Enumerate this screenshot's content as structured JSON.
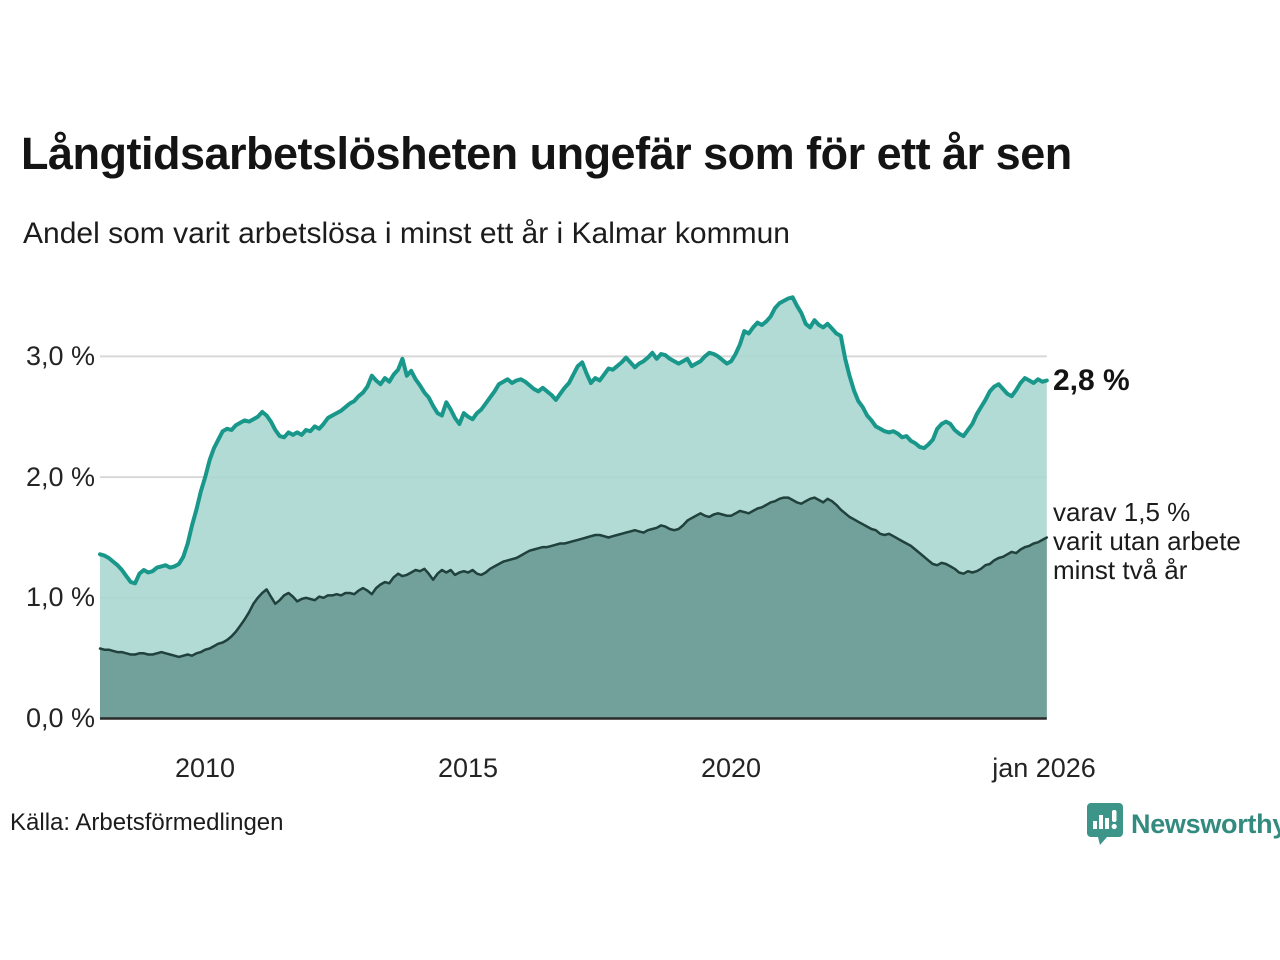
{
  "header": {
    "title": "Långtidsarbetslösheten ungefär som för ett år sen",
    "subtitle": "Andel som varit arbetslösa i minst ett år i Kalmar kommun"
  },
  "annotations": {
    "end_value_label": "2,8 %",
    "secondary_lines": [
      "varav 1,5 %",
      "varit utan arbete",
      "minst två år"
    ]
  },
  "footer": {
    "source": "Källa: Arbetsförmedlingen",
    "brand": "Newsworthy"
  },
  "colors": {
    "line_primary": "#18978a",
    "fill_primary": "#aad7d0",
    "line_secondary": "#20413c",
    "fill_secondary": "#6f9d98",
    "grid": "#d8d8d8",
    "baseline": "#2a2a2a",
    "brand_teal": "#338a7e"
  },
  "chart_data": {
    "type": "area",
    "title": "Långtidsarbetslösheten ungefär som för ett år sen",
    "subtitle": "Andel som varit arbetslösa i minst ett år i Kalmar kommun",
    "x_start_year": 2008.0,
    "x_step_years": 0.083333,
    "x_tick_years": [
      2010,
      2015,
      2020,
      2026
    ],
    "x_tick_labels": [
      "2010",
      "2015",
      "2020",
      "jan 2026"
    ],
    "y_ticks": [
      0,
      1,
      2,
      3
    ],
    "y_tick_labels": [
      "0,0 %",
      "1,0 %",
      "2,0 %",
      "3,0 %"
    ],
    "ylim": [
      0,
      3.6
    ],
    "grid": true,
    "legend_position": "right-annotations",
    "series": [
      {
        "name": "Andel som varit arbetslösa i minst ett år",
        "end_value": 2.8,
        "end_label": "2,8 %",
        "values": [
          1.36,
          1.35,
          1.33,
          1.3,
          1.27,
          1.23,
          1.18,
          1.13,
          1.12,
          1.2,
          1.23,
          1.21,
          1.22,
          1.25,
          1.26,
          1.27,
          1.25,
          1.26,
          1.28,
          1.34,
          1.45,
          1.6,
          1.73,
          1.88,
          2.0,
          2.14,
          2.24,
          2.31,
          2.38,
          2.4,
          2.39,
          2.43,
          2.45,
          2.47,
          2.46,
          2.48,
          2.5,
          2.54,
          2.51,
          2.46,
          2.39,
          2.34,
          2.33,
          2.37,
          2.35,
          2.37,
          2.35,
          2.39,
          2.38,
          2.42,
          2.4,
          2.44,
          2.49,
          2.51,
          2.53,
          2.55,
          2.58,
          2.61,
          2.63,
          2.67,
          2.7,
          2.75,
          2.84,
          2.8,
          2.77,
          2.82,
          2.79,
          2.85,
          2.89,
          2.98,
          2.84,
          2.88,
          2.81,
          2.76,
          2.7,
          2.66,
          2.59,
          2.53,
          2.51,
          2.62,
          2.56,
          2.49,
          2.44,
          2.53,
          2.5,
          2.48,
          2.53,
          2.56,
          2.61,
          2.66,
          2.71,
          2.77,
          2.79,
          2.81,
          2.78,
          2.8,
          2.81,
          2.79,
          2.76,
          2.73,
          2.71,
          2.74,
          2.71,
          2.68,
          2.64,
          2.69,
          2.74,
          2.78,
          2.85,
          2.92,
          2.95,
          2.86,
          2.78,
          2.82,
          2.8,
          2.85,
          2.9,
          2.89,
          2.92,
          2.95,
          2.99,
          2.95,
          2.91,
          2.94,
          2.96,
          2.99,
          3.03,
          2.98,
          3.02,
          3.01,
          2.98,
          2.96,
          2.94,
          2.96,
          2.98,
          2.92,
          2.94,
          2.96,
          3.0,
          3.03,
          3.02,
          3.0,
          2.97,
          2.94,
          2.96,
          3.02,
          3.1,
          3.21,
          3.19,
          3.24,
          3.28,
          3.26,
          3.29,
          3.33,
          3.4,
          3.44,
          3.46,
          3.48,
          3.49,
          3.42,
          3.36,
          3.27,
          3.24,
          3.3,
          3.26,
          3.24,
          3.27,
          3.23,
          3.19,
          3.17,
          2.98,
          2.84,
          2.72,
          2.63,
          2.58,
          2.51,
          2.47,
          2.42,
          2.4,
          2.38,
          2.37,
          2.38,
          2.36,
          2.33,
          2.34,
          2.3,
          2.28,
          2.25,
          2.24,
          2.27,
          2.31,
          2.4,
          2.44,
          2.46,
          2.44,
          2.39,
          2.36,
          2.34,
          2.39,
          2.44,
          2.52,
          2.58,
          2.64,
          2.71,
          2.75,
          2.77,
          2.73,
          2.69,
          2.67,
          2.72,
          2.78,
          2.82,
          2.8,
          2.78,
          2.81,
          2.79,
          2.8
        ]
      },
      {
        "name": "varav utan arbete minst två år",
        "end_value": 1.5,
        "end_label": "varav 1,5 % varit utan arbete minst två år",
        "values": [
          0.58,
          0.57,
          0.57,
          0.56,
          0.55,
          0.55,
          0.54,
          0.53,
          0.53,
          0.54,
          0.54,
          0.53,
          0.53,
          0.54,
          0.55,
          0.54,
          0.53,
          0.52,
          0.51,
          0.52,
          0.53,
          0.52,
          0.54,
          0.55,
          0.57,
          0.58,
          0.6,
          0.62,
          0.63,
          0.65,
          0.68,
          0.72,
          0.77,
          0.82,
          0.88,
          0.95,
          1.0,
          1.04,
          1.07,
          1.01,
          0.95,
          0.98,
          1.02,
          1.04,
          1.01,
          0.97,
          0.99,
          1.0,
          0.99,
          0.98,
          1.01,
          1.0,
          1.02,
          1.02,
          1.03,
          1.02,
          1.04,
          1.04,
          1.03,
          1.06,
          1.08,
          1.06,
          1.03,
          1.08,
          1.11,
          1.13,
          1.12,
          1.17,
          1.2,
          1.18,
          1.19,
          1.21,
          1.23,
          1.22,
          1.24,
          1.2,
          1.15,
          1.2,
          1.23,
          1.21,
          1.23,
          1.19,
          1.21,
          1.22,
          1.21,
          1.23,
          1.2,
          1.19,
          1.21,
          1.24,
          1.26,
          1.28,
          1.3,
          1.31,
          1.32,
          1.33,
          1.35,
          1.37,
          1.39,
          1.4,
          1.41,
          1.42,
          1.42,
          1.43,
          1.44,
          1.45,
          1.45,
          1.46,
          1.47,
          1.48,
          1.49,
          1.5,
          1.51,
          1.52,
          1.52,
          1.51,
          1.5,
          1.51,
          1.52,
          1.53,
          1.54,
          1.55,
          1.56,
          1.55,
          1.54,
          1.56,
          1.57,
          1.58,
          1.6,
          1.59,
          1.57,
          1.56,
          1.57,
          1.6,
          1.64,
          1.66,
          1.68,
          1.7,
          1.68,
          1.67,
          1.69,
          1.7,
          1.69,
          1.68,
          1.68,
          1.7,
          1.72,
          1.71,
          1.7,
          1.72,
          1.74,
          1.75,
          1.77,
          1.79,
          1.8,
          1.82,
          1.83,
          1.83,
          1.81,
          1.79,
          1.78,
          1.8,
          1.82,
          1.83,
          1.81,
          1.79,
          1.82,
          1.8,
          1.77,
          1.73,
          1.7,
          1.67,
          1.65,
          1.63,
          1.61,
          1.59,
          1.57,
          1.56,
          1.53,
          1.52,
          1.53,
          1.51,
          1.49,
          1.47,
          1.45,
          1.43,
          1.4,
          1.37,
          1.34,
          1.31,
          1.28,
          1.27,
          1.29,
          1.28,
          1.26,
          1.24,
          1.21,
          1.2,
          1.22,
          1.21,
          1.22,
          1.24,
          1.27,
          1.28,
          1.31,
          1.33,
          1.34,
          1.36,
          1.38,
          1.37,
          1.4,
          1.42,
          1.43,
          1.45,
          1.46,
          1.48,
          1.5
        ]
      }
    ]
  }
}
